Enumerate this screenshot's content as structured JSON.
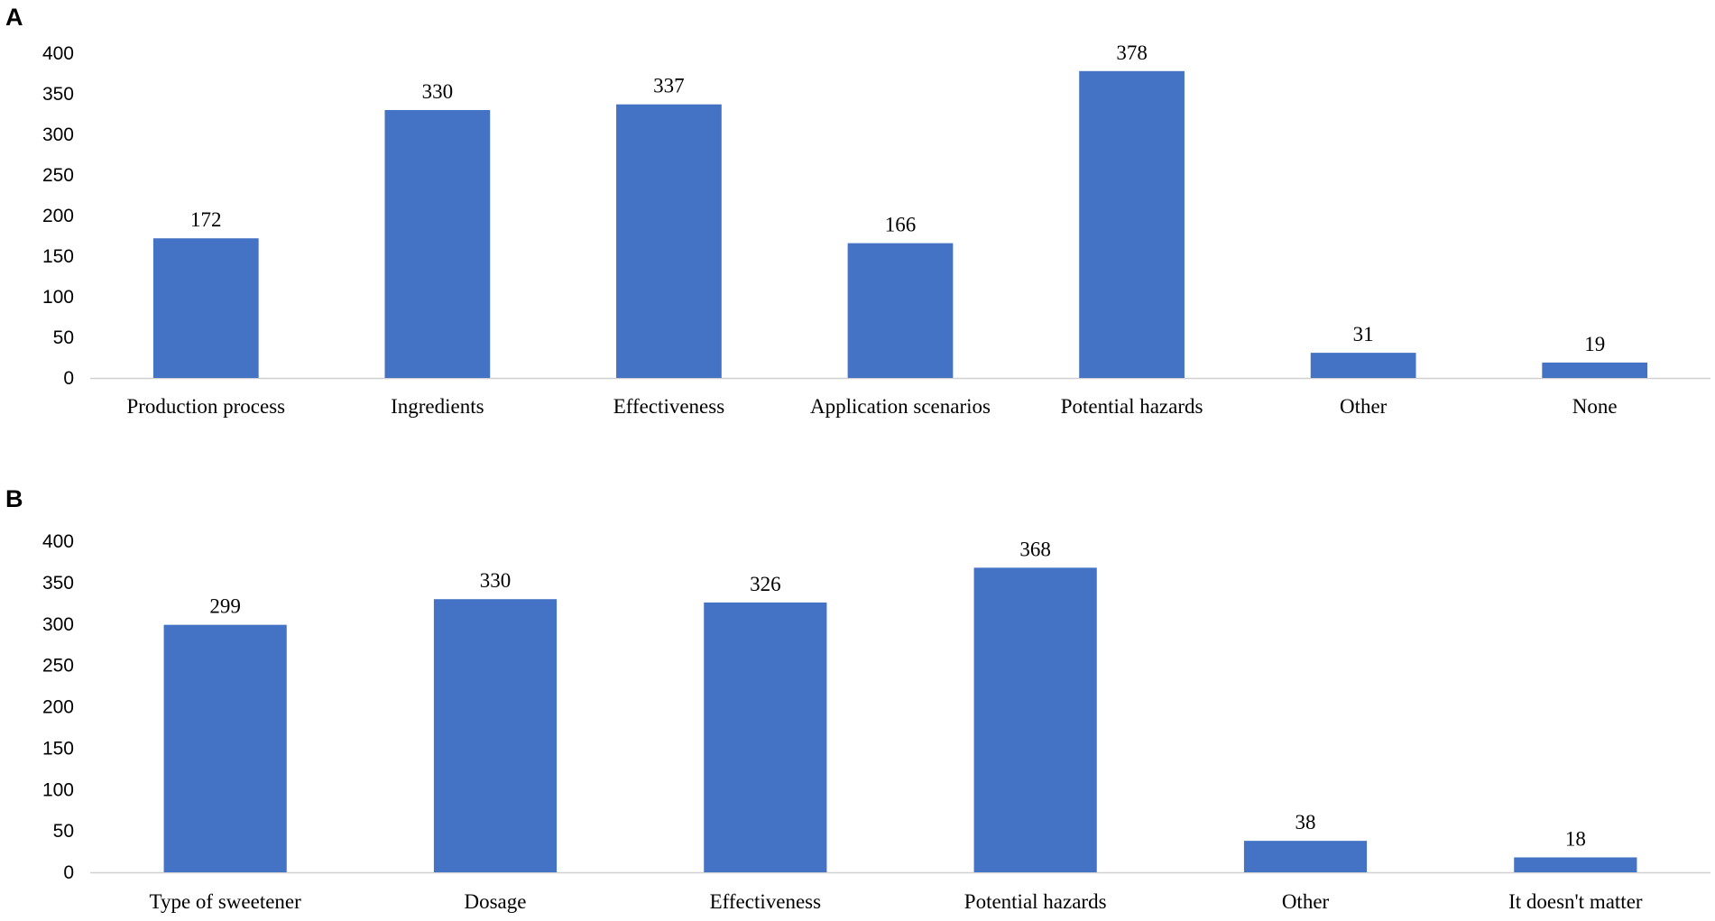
{
  "chart_data": [
    {
      "panel": "A",
      "type": "bar",
      "title": "",
      "xlabel": "",
      "ylabel": "",
      "ylim": [
        0,
        400
      ],
      "yticks": [
        0,
        50,
        100,
        150,
        200,
        250,
        300,
        350,
        400
      ],
      "grid": false,
      "legend": "none",
      "bar_color": "#4472C4",
      "categories": [
        "Production process",
        "Ingredients",
        "Effectiveness",
        "Application scenarios",
        "Potential hazards",
        "Other",
        "None"
      ],
      "values": [
        172,
        330,
        337,
        166,
        378,
        31,
        19
      ]
    },
    {
      "panel": "B",
      "type": "bar",
      "title": "",
      "xlabel": "",
      "ylabel": "",
      "ylim": [
        0,
        400
      ],
      "yticks": [
        0,
        50,
        100,
        150,
        200,
        250,
        300,
        350,
        400
      ],
      "grid": false,
      "legend": "none",
      "bar_color": "#4472C4",
      "categories": [
        "Type of sweetener",
        "Dosage",
        "Effectiveness",
        "Potential hazards",
        "Other",
        "It doesn't matter"
      ],
      "values": [
        299,
        330,
        326,
        368,
        38,
        18
      ]
    }
  ]
}
